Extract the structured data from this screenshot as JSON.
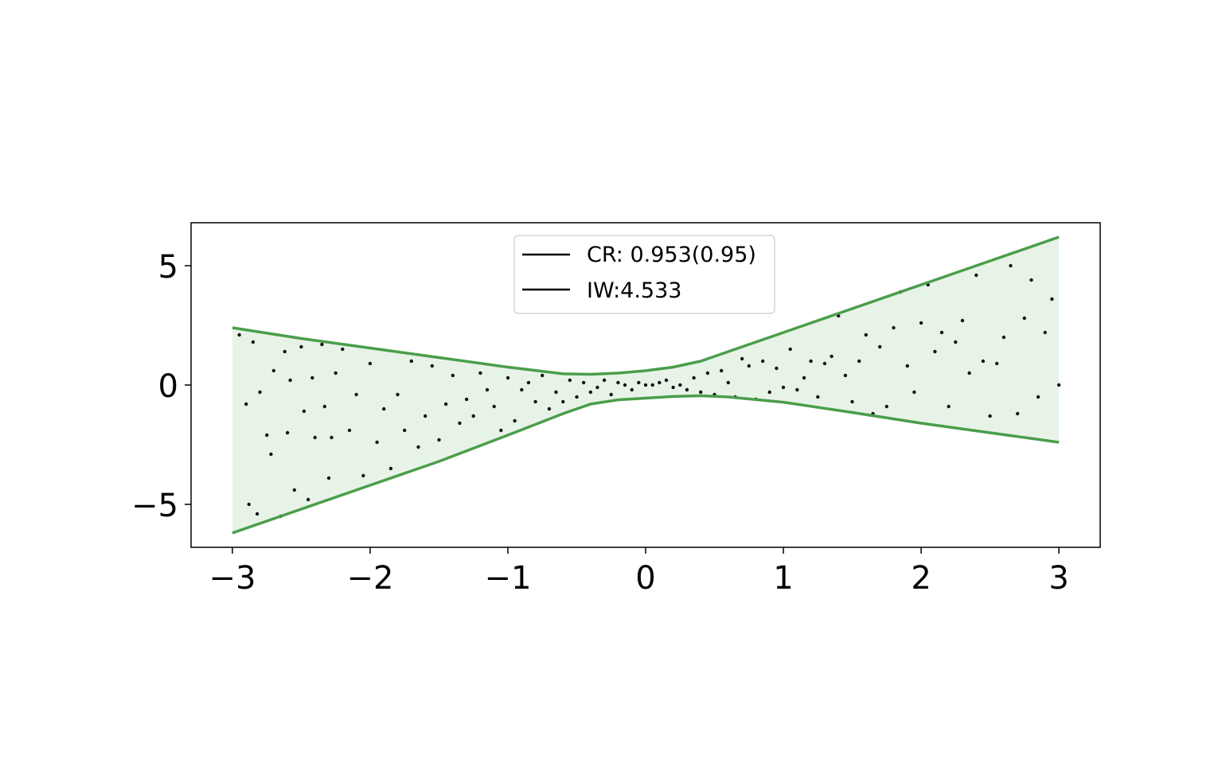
{
  "chart_data": {
    "type": "line",
    "title": "",
    "xlabel": "",
    "ylabel": "",
    "xlim": [
      -3.3,
      3.3
    ],
    "ylim": [
      -6.8,
      6.8
    ],
    "xticks": [
      -3,
      -2,
      -1,
      0,
      1,
      2,
      3
    ],
    "xtick_labels": [
      "−3",
      "−2",
      "−1",
      "0",
      "1",
      "2",
      "3"
    ],
    "yticks": [
      -5,
      0,
      5
    ],
    "ytick_labels": [
      "−5",
      "0",
      "5"
    ],
    "grid": false,
    "legend": {
      "placement": "top-center",
      "entries": [
        {
          "label": "CR: 0.953(0.95)",
          "color": "#000000"
        },
        {
          "label": "IW:4.533",
          "color": "#000000"
        }
      ]
    },
    "series": [
      {
        "role": "upper-bound",
        "color": "#4a9e4a",
        "x": [
          -3.0,
          -2.5,
          -2.0,
          -1.5,
          -1.0,
          -0.6,
          -0.4,
          -0.2,
          0.0,
          0.2,
          0.4,
          0.6,
          1.0,
          1.5,
          2.0,
          2.5,
          3.0
        ],
        "y": [
          2.4,
          1.95,
          1.55,
          1.15,
          0.75,
          0.47,
          0.45,
          0.5,
          0.6,
          0.75,
          1.0,
          1.4,
          2.2,
          3.2,
          4.2,
          5.2,
          6.2
        ]
      },
      {
        "role": "lower-bound",
        "color": "#4a9e4a",
        "x": [
          -3.0,
          -2.5,
          -2.0,
          -1.5,
          -1.0,
          -0.6,
          -0.4,
          -0.2,
          0.0,
          0.2,
          0.4,
          0.6,
          1.0,
          1.5,
          2.0,
          2.5,
          3.0
        ],
        "y": [
          -6.2,
          -5.2,
          -4.2,
          -3.2,
          -2.1,
          -1.2,
          -0.8,
          -0.62,
          -0.55,
          -0.48,
          -0.45,
          -0.5,
          -0.72,
          -1.15,
          -1.6,
          -2.0,
          -2.4
        ]
      },
      {
        "role": "samples",
        "type": "scatter",
        "color": "#111111",
        "x": [
          -2.95,
          -2.9,
          -2.88,
          -2.85,
          -2.82,
          -2.8,
          -2.75,
          -2.72,
          -2.7,
          -2.65,
          -2.62,
          -2.6,
          -2.58,
          -2.55,
          -2.5,
          -2.48,
          -2.45,
          -2.42,
          -2.4,
          -2.35,
          -2.33,
          -2.3,
          -2.28,
          -2.25,
          -2.2,
          -2.15,
          -2.1,
          -2.05,
          -2.0,
          -1.95,
          -1.9,
          -1.85,
          -1.8,
          -1.75,
          -1.7,
          -1.65,
          -1.6,
          -1.55,
          -1.5,
          -1.45,
          -1.4,
          -1.35,
          -1.3,
          -1.25,
          -1.2,
          -1.15,
          -1.1,
          -1.05,
          -1.0,
          -0.95,
          -0.9,
          -0.85,
          -0.8,
          -0.75,
          -0.7,
          -0.65,
          -0.6,
          -0.55,
          -0.5,
          -0.45,
          -0.4,
          -0.35,
          -0.3,
          -0.25,
          -0.2,
          -0.15,
          -0.1,
          -0.05,
          0.0,
          0.05,
          0.1,
          0.15,
          0.2,
          0.25,
          0.3,
          0.35,
          0.4,
          0.45,
          0.5,
          0.55,
          0.6,
          0.65,
          0.7,
          0.75,
          0.8,
          0.85,
          0.9,
          0.95,
          1.0,
          1.05,
          1.1,
          1.15,
          1.2,
          1.25,
          1.3,
          1.35,
          1.4,
          1.45,
          1.5,
          1.55,
          1.6,
          1.65,
          1.7,
          1.75,
          1.8,
          1.85,
          1.9,
          1.95,
          2.0,
          2.05,
          2.1,
          2.15,
          2.2,
          2.25,
          2.3,
          2.35,
          2.4,
          2.45,
          2.5,
          2.55,
          2.6,
          2.65,
          2.7,
          2.75,
          2.8,
          2.85,
          2.9,
          2.95,
          3.0
        ],
        "y": [
          2.1,
          -0.8,
          -5.0,
          1.8,
          -5.4,
          -0.3,
          -2.1,
          -2.9,
          0.6,
          -5.5,
          1.4,
          -2.0,
          0.2,
          -4.4,
          1.6,
          -1.1,
          -4.8,
          0.3,
          -2.2,
          1.7,
          -0.9,
          -3.9,
          -2.2,
          0.5,
          1.5,
          -1.9,
          -0.4,
          -3.8,
          0.9,
          -2.4,
          -1.0,
          -3.5,
          -0.4,
          -1.9,
          1.0,
          -2.6,
          -1.3,
          0.8,
          -2.3,
          -0.8,
          0.4,
          -1.6,
          -0.6,
          -1.3,
          0.5,
          -0.2,
          -0.9,
          -1.9,
          0.3,
          -1.5,
          -0.2,
          0.1,
          -0.7,
          0.4,
          -1.0,
          -0.3,
          -0.7,
          0.2,
          -0.5,
          0.1,
          -0.3,
          -0.1,
          0.2,
          -0.4,
          0.1,
          0.0,
          -0.2,
          0.1,
          0.0,
          0.0,
          0.1,
          0.2,
          -0.1,
          0.0,
          -0.2,
          0.3,
          -0.3,
          0.5,
          -0.4,
          0.6,
          0.1,
          -0.5,
          1.1,
          0.8,
          -0.6,
          1.0,
          -0.3,
          0.7,
          -0.1,
          1.5,
          -0.2,
          0.3,
          1.0,
          -0.5,
          0.9,
          1.2,
          2.9,
          0.4,
          -0.7,
          1.0,
          2.1,
          -1.2,
          1.6,
          -0.9,
          2.4,
          3.9,
          0.8,
          -0.3,
          2.6,
          4.2,
          1.4,
          2.2,
          -0.9,
          1.8,
          2.7,
          0.5,
          4.6,
          1.0,
          -1.3,
          0.9,
          2.0,
          5.0,
          -1.2,
          2.8,
          4.4,
          -0.5,
          2.2,
          3.6,
          0.0
        ]
      }
    ],
    "fill_between": {
      "between": [
        "upper-bound",
        "lower-bound"
      ],
      "color": "#e8f3e8"
    }
  }
}
